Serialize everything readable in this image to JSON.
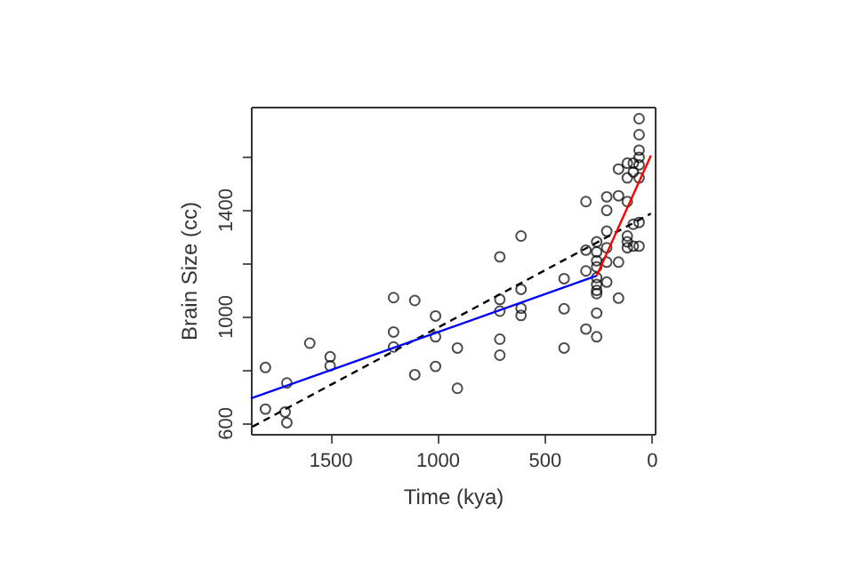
{
  "chart_data": {
    "type": "scatter",
    "xlabel": "Time (kya)",
    "ylabel": "Brain Size (cc)",
    "xlim": [
      1870,
      -15
    ],
    "ylim": [
      558,
      1785
    ],
    "xticks": [
      1500,
      1000,
      500,
      0
    ],
    "yticks": [
      600,
      {
        "value": 800,
        "label": null
      },
      1000,
      {
        "value": 1200,
        "label": null
      },
      1400,
      {
        "value": 1600,
        "label": null
      }
    ],
    "grid": false,
    "series": [
      {
        "color": "#000000",
        "marker": "circle",
        "x": [
          1802,
          1802,
          1702,
          1710,
          1702,
          1595,
          1500,
          1500,
          1204,
          1204,
          1204,
          1105,
          1105,
          1008,
          1008,
          1008,
          906,
          906,
          708,
          708,
          708,
          708,
          708,
          609,
          609,
          609,
          609,
          408,
          408,
          408,
          306,
          306,
          306,
          306,
          256,
          256,
          256,
          256,
          256,
          256,
          256,
          256,
          256,
          256,
          209,
          209,
          209,
          209,
          209,
          209,
          154,
          154,
          154,
          154,
          113,
          113,
          113,
          113,
          113,
          113,
          85,
          85,
          85,
          85,
          58,
          58,
          58,
          58,
          58,
          58,
          58,
          58
        ],
        "values": [
          807,
          651,
          749,
          640,
          600,
          898,
          847,
          813,
          1069,
          940,
          884,
          1058,
          780,
          1000,
          922,
          811,
          880,
          729,
          1222,
          1062,
          1018,
          913,
          853,
          1300,
          1100,
          1029,
          1002,
          1140,
          1027,
          880,
          1429,
          1247,
          1169,
          951,
          1278,
          1240,
          1207,
          1184,
          1144,
          1118,
          1096,
          1084,
          1011,
          922,
          1447,
          1396,
          1318,
          1256,
          1202,
          1127,
          1451,
          1202,
          1067,
          1551,
          1573,
          1518,
          1429,
          1300,
          1278,
          1256,
          1573,
          1540,
          1344,
          1262,
          1740,
          1680,
          1622,
          1595,
          1567,
          1518,
          1351,
          1262
        ]
      },
      {
        "type": "line",
        "color": "#000000",
        "line_style": "dashed",
        "x": [
          1862,
          3
        ],
        "values": [
          585,
          1384
        ]
      },
      {
        "type": "line",
        "color": "#0000ff",
        "line_style": "solid",
        "x": [
          1870,
          256
        ],
        "values": [
          691,
          1151
        ]
      },
      {
        "type": "line",
        "color": "#ff0000",
        "line_style": "solid",
        "x": [
          256,
          3
        ],
        "values": [
          1151,
          1602
        ]
      }
    ]
  }
}
